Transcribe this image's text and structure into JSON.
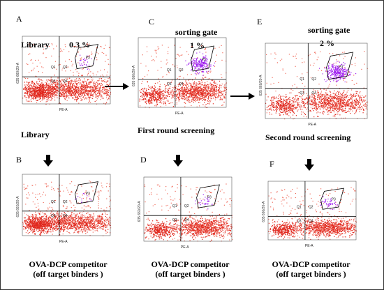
{
  "panels": {
    "A": {
      "letter": "A",
      "top_left": "Library",
      "percent": "0.3 %",
      "bottom_caption": "Library",
      "ytitle": "635 660/20-A",
      "xtitle": "PE-A",
      "quad": [
        "Q1",
        "Q2",
        "Q3",
        "Q4"
      ],
      "gate": "P3",
      "purple": 0.05,
      "density": "high"
    },
    "B": {
      "letter": "B",
      "ytitle": "635 660/20-A",
      "xtitle": "PE-A",
      "quad": [
        "Q1",
        "Q2",
        "Q3",
        "Q4"
      ],
      "gate": "P3",
      "purple": 0.02,
      "density": "high"
    },
    "C": {
      "letter": "C",
      "top_label": "sorting  gate",
      "percent": "1 %",
      "caption": "First round screening",
      "ytitle": "635 660/20-A",
      "xtitle": "PE-A",
      "quad": [
        "Q1",
        "Q2",
        "Q3",
        "Q4"
      ],
      "gate": "P3",
      "purple": 0.35,
      "density": "med"
    },
    "D": {
      "letter": "D",
      "ytitle": "635 660/20-A",
      "xtitle": "PE-A",
      "quad": [
        "Q1",
        "Q2",
        "Q3",
        "Q4"
      ],
      "gate": "P3",
      "purple": 0.05,
      "density": "med"
    },
    "E": {
      "letter": "E",
      "top_label": "sorting  gate",
      "percent": "2 %",
      "caption": "Second round screening",
      "ytitle": "635 660/20-A",
      "xtitle": "PE-A",
      "quad": [
        "Q1",
        "Q2",
        "Q3",
        "Q4"
      ],
      "gate": "P3",
      "purple": 0.45,
      "density": "med"
    },
    "F": {
      "letter": "F",
      "ytitle": "635 660/20-A",
      "xtitle": "PE-A",
      "quad": [
        "Q1",
        "Q2",
        "Q3",
        "Q4"
      ],
      "gate": "P3",
      "purple": 0.08,
      "density": "med"
    }
  },
  "competitor_caption_line1": "OVA-DCP competitor",
  "competitor_caption_line2": "(off target binders )",
  "colors": {
    "dots": "#e0271d",
    "dots_light": "#f06a5a",
    "purple": "#a020f0",
    "lines": "#000000"
  }
}
